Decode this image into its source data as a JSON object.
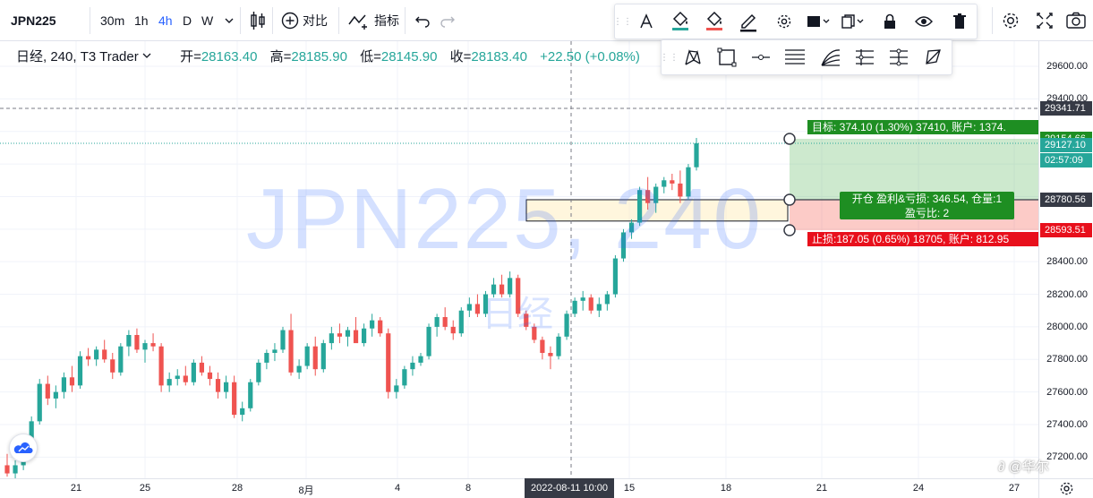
{
  "toolbar": {
    "symbol": "JPN225",
    "intervals": [
      {
        "label": "30m",
        "active": false
      },
      {
        "label": "1h",
        "active": false
      },
      {
        "label": "4h",
        "active": true
      },
      {
        "label": "D",
        "active": false
      },
      {
        "label": "W",
        "active": false
      }
    ],
    "compare_label": "对比",
    "indicators_label": "指标"
  },
  "legend": {
    "title": "日经, 240, T3 Trader",
    "open_key": "开=",
    "open": "28163.40",
    "high_key": "高=",
    "high": "28185.90",
    "low_key": "低=",
    "low": "28145.90",
    "close_key": "收=",
    "close": "28183.40",
    "change": "+22.50 (+0.08%)"
  },
  "watermark": {
    "text": "JPN225, 240",
    "sub": "日经"
  },
  "price_axis": {
    "labels": [
      "29600.00",
      "29400.00",
      "28400.00",
      "28200.00",
      "28000.00",
      "27800.00",
      "27600.00",
      "27400.00",
      "27200.00"
    ],
    "badges": [
      {
        "text": "29341.71",
        "color": "#363a45"
      },
      {
        "text": "29154.66",
        "color": "#1e8e22"
      },
      {
        "text": "29127.10",
        "color": "#26a69a"
      },
      {
        "text": "02:57:09",
        "color": "#26a69a"
      },
      {
        "text": "28780.56",
        "color": "#363a45"
      },
      {
        "text": "28593.51",
        "color": "#e8101c"
      }
    ]
  },
  "time_axis": {
    "labels": [
      "21",
      "25",
      "28",
      "8月",
      "4",
      "8",
      "15",
      "18",
      "21",
      "24",
      "27"
    ],
    "crosshair": "2022-08-11   10:00"
  },
  "position": {
    "target_label": "目标: 374.10 (1.30%) 37410, 账户: 1374.",
    "entry_label_1": "开仓 盈利&亏损: 346.54, 仓量:1",
    "entry_label_2": "盈亏比: 2",
    "stop_label": "止损:187.05 (0.65%) 18705, 账户: 812.95"
  },
  "brand": "华尔",
  "chart_data": {
    "type": "candlestick",
    "title": "日经, 240, T3 Trader",
    "ylim": [
      27100,
      29700
    ],
    "colors": {
      "up": "#26a69a",
      "down": "#ef5350"
    },
    "candles": [
      [
        27150,
        27220,
        27080,
        27100
      ],
      [
        27100,
        27180,
        27050,
        27150
      ],
      [
        27150,
        27320,
        27120,
        27300
      ],
      [
        27300,
        27450,
        27250,
        27420
      ],
      [
        27420,
        27680,
        27400,
        27650
      ],
      [
        27650,
        27700,
        27520,
        27560
      ],
      [
        27560,
        27640,
        27500,
        27600
      ],
      [
        27600,
        27720,
        27560,
        27690
      ],
      [
        27690,
        27760,
        27600,
        27640
      ],
      [
        27640,
        27850,
        27620,
        27820
      ],
      [
        27820,
        27870,
        27760,
        27800
      ],
      [
        27800,
        27880,
        27760,
        27860
      ],
      [
        27860,
        27920,
        27780,
        27800
      ],
      [
        27800,
        27840,
        27680,
        27720
      ],
      [
        27720,
        27900,
        27700,
        27880
      ],
      [
        27880,
        27980,
        27820,
        27950
      ],
      [
        27950,
        27990,
        27840,
        27860
      ],
      [
        27860,
        27920,
        27780,
        27900
      ],
      [
        27900,
        27960,
        27850,
        27880
      ],
      [
        27880,
        27900,
        27600,
        27640
      ],
      [
        27640,
        27720,
        27600,
        27680
      ],
      [
        27680,
        27740,
        27640,
        27700
      ],
      [
        27700,
        27760,
        27640,
        27660
      ],
      [
        27660,
        27800,
        27640,
        27780
      ],
      [
        27780,
        27820,
        27700,
        27720
      ],
      [
        27720,
        27760,
        27640,
        27680
      ],
      [
        27680,
        27720,
        27560,
        27600
      ],
      [
        27600,
        27700,
        27560,
        27660
      ],
      [
        27660,
        27700,
        27440,
        27460
      ],
      [
        27460,
        27540,
        27420,
        27500
      ],
      [
        27500,
        27680,
        27480,
        27660
      ],
      [
        27660,
        27800,
        27640,
        27780
      ],
      [
        27780,
        27860,
        27740,
        27840
      ],
      [
        27840,
        27900,
        27790,
        27860
      ],
      [
        27860,
        28000,
        27840,
        27980
      ],
      [
        27980,
        28080,
        27700,
        27720
      ],
      [
        27720,
        27800,
        27680,
        27760
      ],
      [
        27760,
        27900,
        27740,
        27880
      ],
      [
        27880,
        27940,
        27700,
        27740
      ],
      [
        27740,
        27920,
        27720,
        27900
      ],
      [
        27900,
        28000,
        27860,
        27960
      ],
      [
        27960,
        28020,
        27900,
        27940
      ],
      [
        27940,
        28000,
        27880,
        27980
      ],
      [
        27980,
        28060,
        27920,
        27900
      ],
      [
        27900,
        28020,
        27880,
        27990
      ],
      [
        27990,
        28080,
        27940,
        28040
      ],
      [
        28040,
        28060,
        27940,
        27960
      ],
      [
        27960,
        27990,
        27560,
        27600
      ],
      [
        27600,
        27680,
        27560,
        27640
      ],
      [
        27640,
        27760,
        27620,
        27740
      ],
      [
        27740,
        27820,
        27700,
        27780
      ],
      [
        27780,
        27840,
        27760,
        27820
      ],
      [
        27820,
        28020,
        27800,
        28000
      ],
      [
        28000,
        28080,
        27940,
        28060
      ],
      [
        28060,
        28120,
        27980,
        28000
      ],
      [
        28000,
        28040,
        27920,
        27960
      ],
      [
        27960,
        28120,
        27940,
        28100
      ],
      [
        28100,
        28180,
        28060,
        28140
      ],
      [
        28140,
        28200,
        28060,
        28080
      ],
      [
        28080,
        28220,
        28060,
        28200
      ],
      [
        28200,
        28300,
        28180,
        28260
      ],
      [
        28260,
        28320,
        28180,
        28200
      ],
      [
        28200,
        28340,
        28180,
        28300
      ],
      [
        28300,
        28320,
        28060,
        28080
      ],
      [
        28080,
        28100,
        27980,
        28000
      ],
      [
        28000,
        28020,
        27900,
        27920
      ],
      [
        27920,
        27940,
        27800,
        27840
      ],
      [
        27840,
        27880,
        27740,
        27820
      ],
      [
        27820,
        27960,
        27800,
        27940
      ],
      [
        27940,
        28100,
        27920,
        28080
      ],
      [
        28080,
        28180,
        28060,
        28160
      ],
      [
        28160,
        28220,
        28100,
        28180
      ],
      [
        28180,
        28200,
        28080,
        28100
      ],
      [
        28100,
        28180,
        28060,
        28140
      ],
      [
        28140,
        28220,
        28100,
        28200
      ],
      [
        28200,
        28440,
        28180,
        28420
      ],
      [
        28420,
        28600,
        28400,
        28580
      ],
      [
        28580,
        28660,
        28540,
        28640
      ],
      [
        28640,
        28860,
        28620,
        28840
      ],
      [
        28840,
        28920,
        28720,
        28760
      ],
      [
        28760,
        28880,
        28700,
        28860
      ],
      [
        28860,
        28920,
        28820,
        28900
      ],
      [
        28900,
        28940,
        28840,
        28880
      ],
      [
        28880,
        28960,
        28760,
        28800
      ],
      [
        28800,
        29000,
        28780,
        28980
      ],
      [
        28980,
        29160,
        28960,
        29127
      ]
    ]
  }
}
